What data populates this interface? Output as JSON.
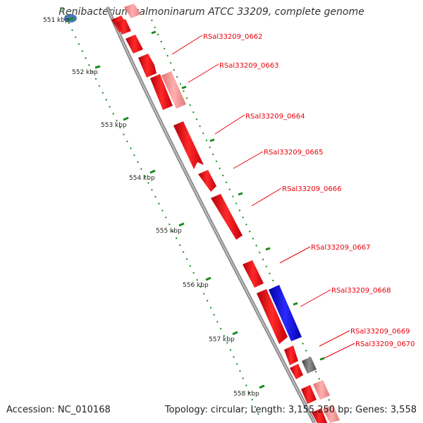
{
  "title": "Renibacterium salmoninarum ATCC 33209, complete genome",
  "accession": "Accession: NC_010168",
  "summary": "Topology: circular; Length: 3,155,250 bp; Genes: 3,558",
  "ruler_labels": [
    "551 kbp",
    "552 kbp",
    "553 kbp",
    "554 kbp",
    "555 kbp",
    "556 kbp",
    "557 kbp",
    "558 kbp"
  ],
  "gene_labels": [
    "RSal33209_0662",
    "RSal33209_0663",
    "RSal33209_0664",
    "RSal33209_0665",
    "RSal33209_0666",
    "RSal33209_0667",
    "RSal33209_0668",
    "RSal33209_0669",
    "RSal33209_0670"
  ],
  "colors": {
    "cds": "#e8000b",
    "cds_light": "#f08a8c",
    "highlight": "#1010e0",
    "grey_feature": "#6a6a6a",
    "backbone": "#8a8a8a",
    "ruler": "#1a8a1a",
    "outer_feature": "#4a78b8"
  }
}
